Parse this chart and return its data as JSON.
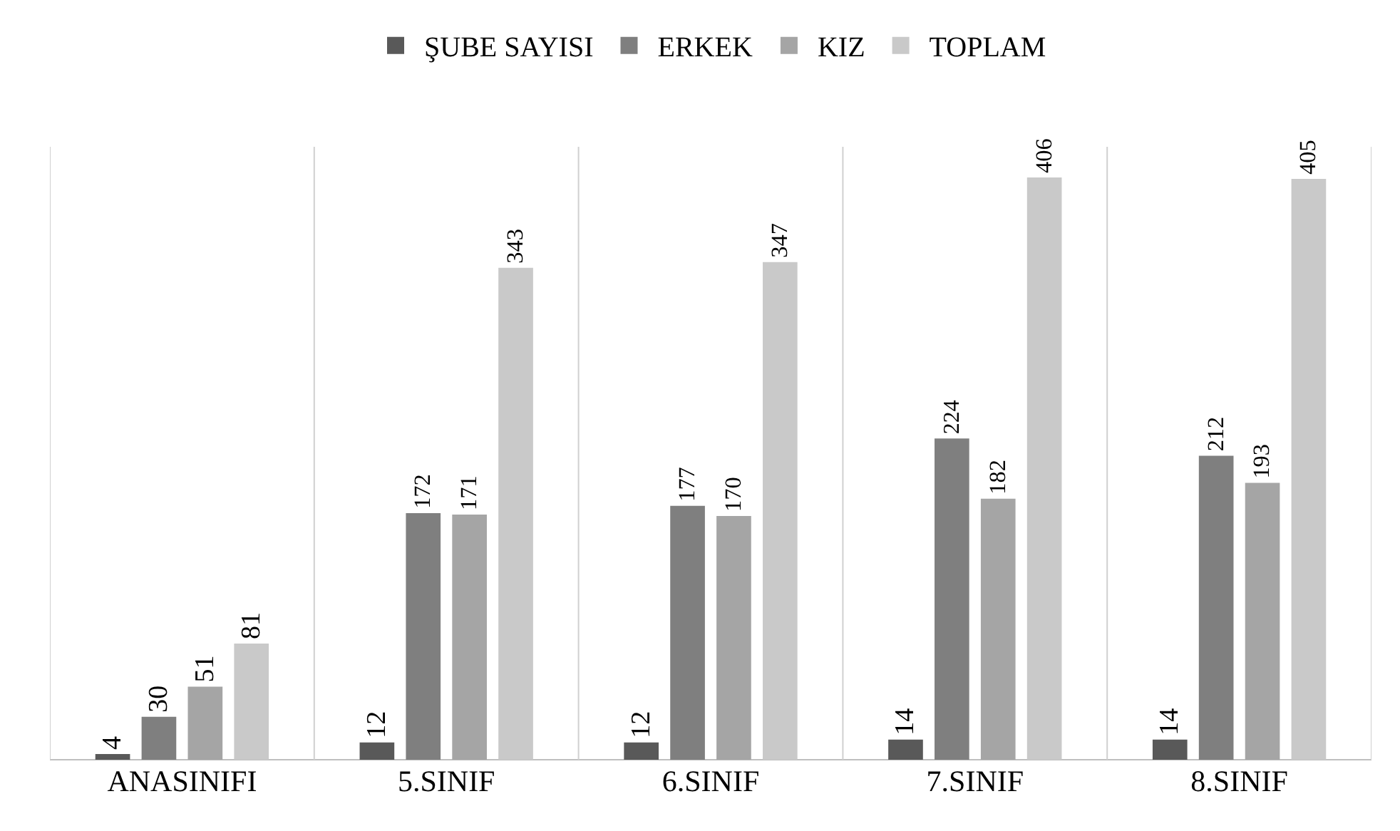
{
  "chart_data": {
    "type": "bar",
    "categories": [
      "ANASINIFI",
      "5.SINIF",
      "6.SINIF",
      "7.SINIF",
      "8.SINIF"
    ],
    "series": [
      {
        "name": "ŞUBE SAYISI",
        "color": "#595959",
        "values": [
          4,
          12,
          12,
          14,
          14
        ]
      },
      {
        "name": "ERKEK",
        "color": "#7f7f7f",
        "values": [
          30,
          172,
          177,
          224,
          212
        ]
      },
      {
        "name": "KIZ",
        "color": "#a5a5a5",
        "values": [
          51,
          171,
          170,
          182,
          193
        ]
      },
      {
        "name": "TOPLAM",
        "color": "#c9c9c9",
        "values": [
          81,
          343,
          347,
          406,
          405
        ]
      }
    ],
    "data_labels": true,
    "grid": "x",
    "legend": "top"
  }
}
